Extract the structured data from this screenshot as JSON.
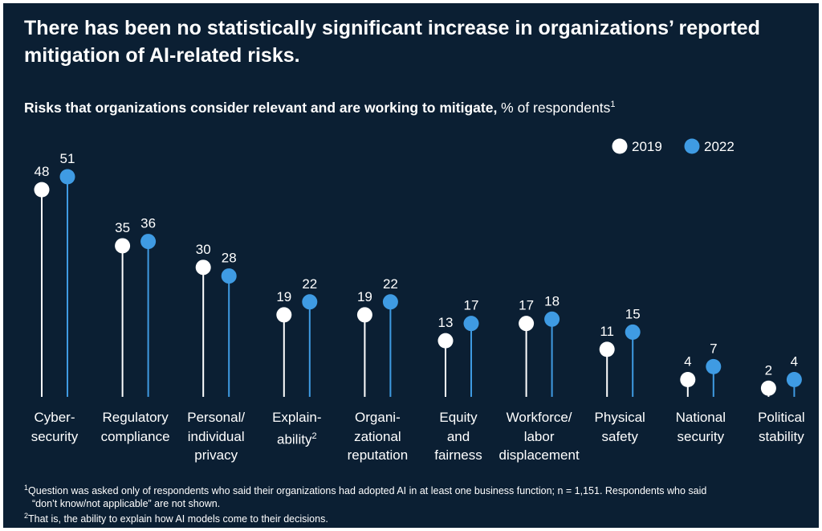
{
  "title": "There has been no statistically significant increase in organizations’ reported mitigation of AI-related risks.",
  "subtitle_bold": "Risks that organizations consider relevant and are working to mitigate,",
  "subtitle_rest": " % of respondents",
  "subtitle_note": "1",
  "colors": {
    "background": "#0b1f33",
    "series_2019": "#ffffff",
    "series_2022": "#3f9be3",
    "text": "#ffffff"
  },
  "chart_data": {
    "type": "lollipop",
    "categories": [
      "Cyber-\nsecurity",
      "Regulatory\ncompliance",
      "Personal/\nindividual\nprivacy",
      "Explain-\nability",
      "Organi-\nzational\nreputation",
      "Equity\nand\nfairness",
      "Workforce/\nlabor\ndisplacement",
      "Physical\nsafety",
      "National\nsecurity",
      "Political\nstability"
    ],
    "category_notes": [
      "",
      "",
      "",
      "2",
      "",
      "",
      "",
      "",
      "",
      ""
    ],
    "series": [
      {
        "name": "2019",
        "values": [
          48,
          35,
          30,
          19,
          19,
          13,
          17,
          11,
          4,
          2
        ]
      },
      {
        "name": "2022",
        "values": [
          51,
          36,
          28,
          22,
          22,
          17,
          18,
          15,
          7,
          4
        ]
      }
    ],
    "legend": "top-right"
  },
  "footnotes": [
    {
      "mark": "1",
      "text": "Question was asked only of respondents who said their organizations had adopted AI in at least one business function; n = 1,151. Respondents who said"
    },
    {
      "mark": "",
      "text": "“don’t know/not applicable” are not shown."
    },
    {
      "mark": "2",
      "text": "That is, the ability to explain how AI models come to their decisions."
    }
  ]
}
